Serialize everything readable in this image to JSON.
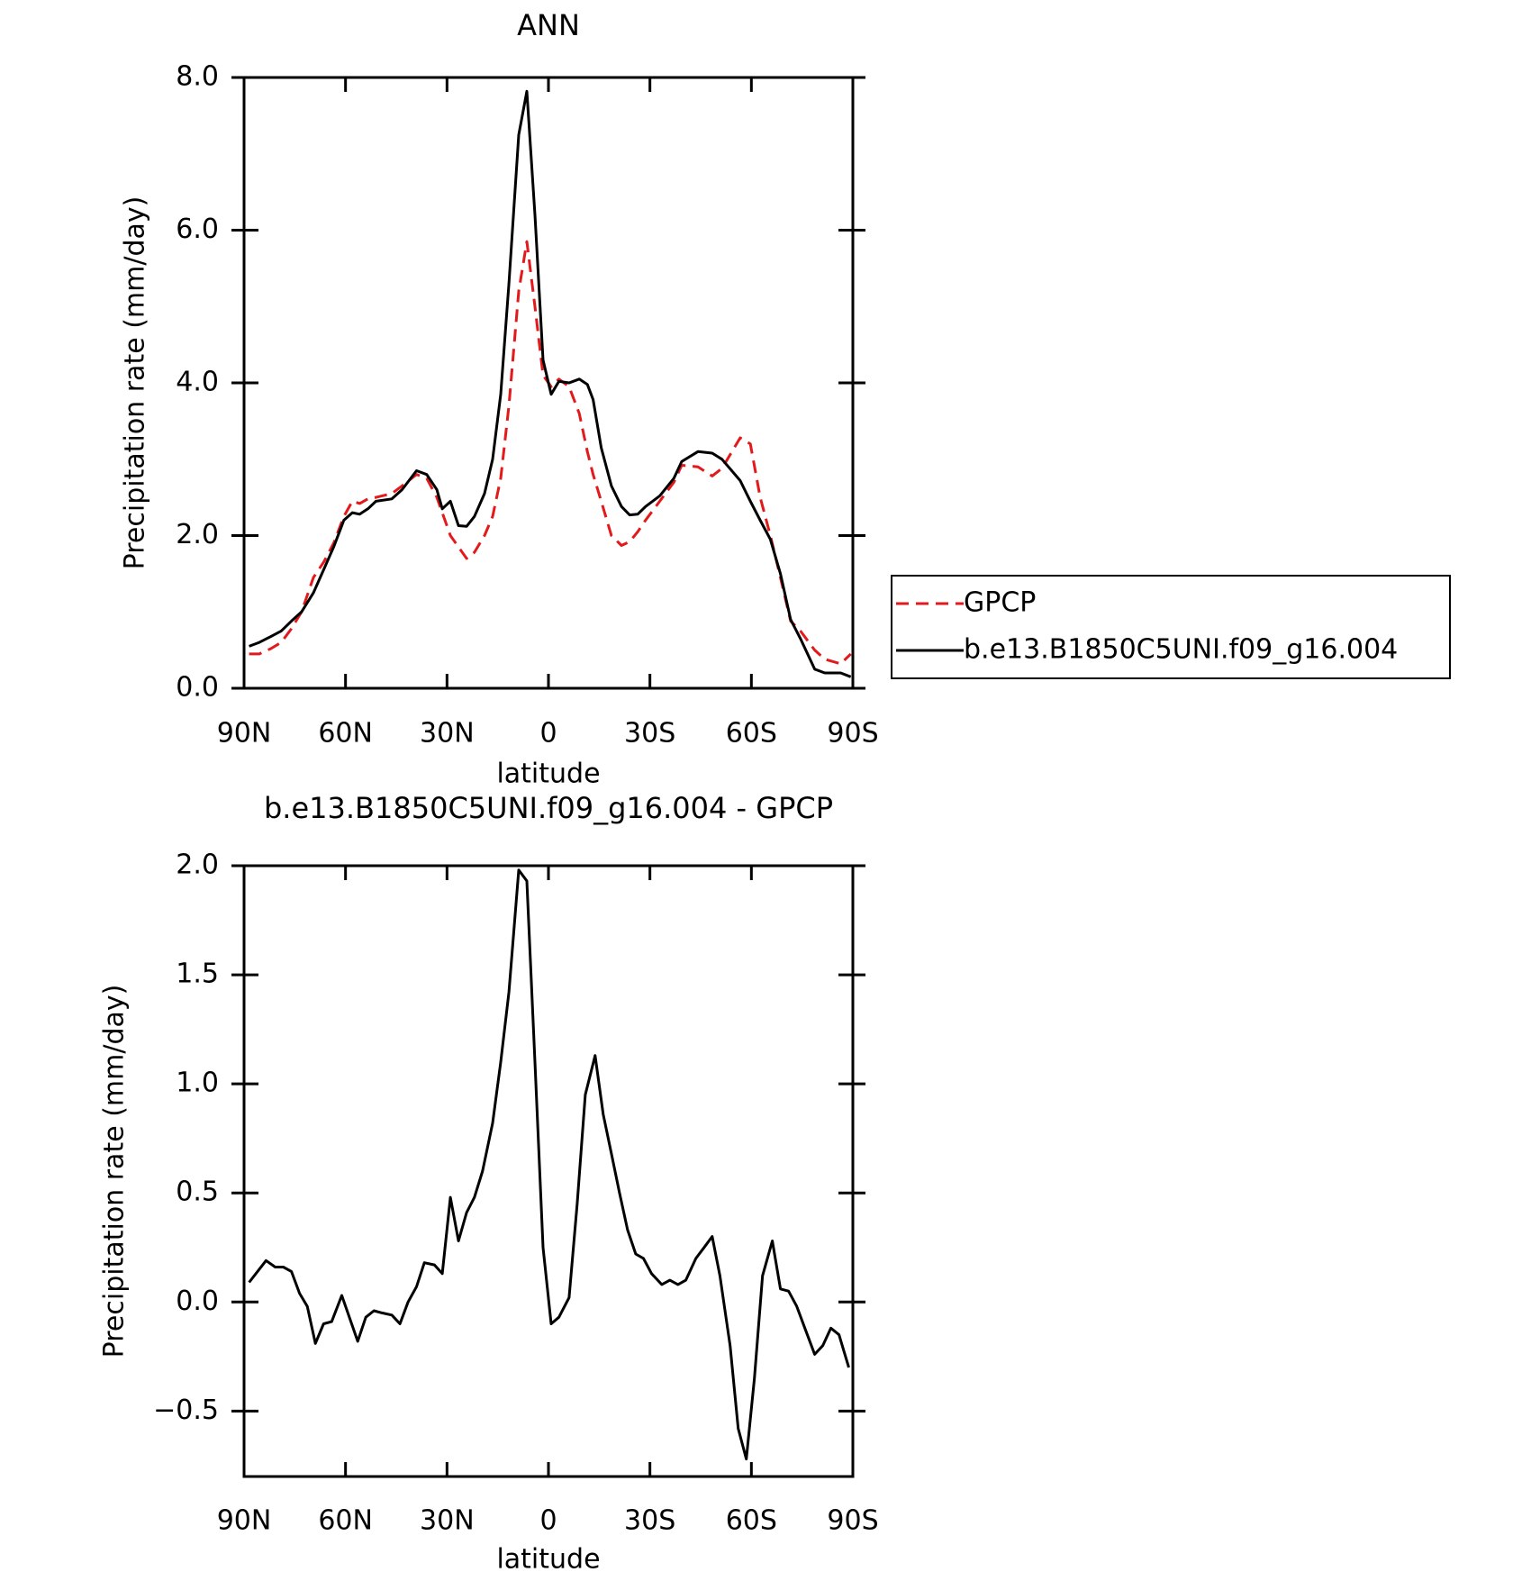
{
  "chart_data": [
    {
      "type": "line",
      "title": "ANN",
      "x_label": "latitude",
      "y_label": "Precipitation rate (mm/day)",
      "x": [
        88.5,
        85.5,
        82,
        79,
        76,
        73,
        69.5,
        66.5,
        63.5,
        60.5,
        58,
        55.8,
        53.4,
        51,
        46.3,
        43.3,
        39,
        36,
        33,
        31.4,
        29,
        26.6,
        24.2,
        21.9,
        18.9,
        16.5,
        14.1,
        11.7,
        8.8,
        6.4,
        4,
        1.6,
        -0.8,
        -3.1,
        -6.1,
        -9.1,
        -11.5,
        -13.2,
        -15.6,
        -18.6,
        -21.6,
        -24,
        -26.4,
        -28.7,
        -32.9,
        -37.1,
        -39.4,
        -44.2,
        -48.4,
        -51.3,
        -56.7,
        -59.7,
        -62.6,
        -65.6,
        -68.6,
        -71.6,
        -74.5,
        -78.7,
        -81.7,
        -86.4,
        -89.4
      ],
      "series": [
        {
          "name": "GPCP",
          "color": "#e31a1c",
          "style": "dashed",
          "values": [
            0.45,
            0.45,
            0.52,
            0.6,
            0.78,
            1.0,
            1.45,
            1.65,
            1.9,
            2.25,
            2.45,
            2.42,
            2.48,
            2.5,
            2.55,
            2.65,
            2.8,
            2.75,
            2.5,
            2.3,
            2.0,
            1.85,
            1.7,
            1.78,
            2.0,
            2.25,
            2.75,
            3.7,
            5.2,
            5.85,
            5.0,
            4.1,
            3.95,
            4.05,
            3.95,
            3.6,
            3.1,
            2.8,
            2.45,
            2.0,
            1.87,
            1.92,
            2.05,
            2.2,
            2.45,
            2.7,
            2.92,
            2.9,
            2.78,
            2.88,
            3.28,
            3.2,
            2.5,
            2.0,
            1.45,
            0.88,
            0.75,
            0.5,
            0.38,
            0.32,
            0.45
          ]
        },
        {
          "name": "b.e13.B1850C5UNI.f09_g16.004",
          "color": "#000000",
          "style": "solid",
          "values": [
            0.55,
            0.6,
            0.68,
            0.75,
            0.88,
            1.0,
            1.25,
            1.55,
            1.85,
            2.2,
            2.3,
            2.28,
            2.35,
            2.45,
            2.48,
            2.6,
            2.85,
            2.8,
            2.6,
            2.35,
            2.45,
            2.13,
            2.12,
            2.25,
            2.55,
            3.0,
            3.85,
            5.3,
            7.25,
            7.82,
            6.2,
            4.3,
            3.85,
            4.02,
            4.0,
            4.05,
            3.98,
            3.78,
            3.15,
            2.65,
            2.38,
            2.27,
            2.28,
            2.38,
            2.52,
            2.75,
            2.97,
            3.1,
            3.08,
            3.0,
            2.72,
            2.45,
            2.2,
            1.95,
            1.5,
            0.9,
            0.65,
            0.25,
            0.2,
            0.2,
            0.15
          ]
        }
      ],
      "xlim": [
        90,
        -90
      ],
      "xticks": [
        {
          "value": 90,
          "label": "90N"
        },
        {
          "value": 60,
          "label": "60N"
        },
        {
          "value": 30,
          "label": "30N"
        },
        0,
        {
          "value": -30,
          "label": "30S"
        },
        {
          "value": -60,
          "label": "60S"
        },
        {
          "value": -90,
          "label": "90S"
        }
      ],
      "ylim": [
        0,
        8
      ],
      "yticks": [
        {
          "value": 0,
          "label": "0.0"
        },
        {
          "value": 2,
          "label": "2.0"
        },
        {
          "value": 4,
          "label": "4.0"
        },
        {
          "value": 6,
          "label": "6.0"
        },
        {
          "value": 8,
          "label": "8.0"
        }
      ],
      "legend": "right",
      "grid": false
    },
    {
      "type": "line",
      "title": "b.e13.B1850C5UNI.f09_g16.004 - GPCP",
      "x_label": "latitude",
      "y_label": "Precipitation rate (mm/day)",
      "x": [
        88.5,
        83.5,
        80.8,
        78.4,
        76,
        73.6,
        71.3,
        68.9,
        66.5,
        64.1,
        61.1,
        56.4,
        54,
        51.6,
        49.2,
        46.3,
        43.9,
        41.5,
        39,
        36.7,
        33.7,
        31.4,
        29,
        26.6,
        24.2,
        21.9,
        19.5,
        16.5,
        14.1,
        11.7,
        8.8,
        6.4,
        4,
        1.6,
        -0.8,
        -3.1,
        -6.1,
        -8.5,
        -10.9,
        -13.8,
        -16.2,
        -18.6,
        -21,
        -23.4,
        -25.8,
        -28.1,
        -30.5,
        -33.5,
        -35.9,
        -38.3,
        -40.6,
        -43.6,
        -46,
        -48.4,
        -50.7,
        -53.7,
        -56.1,
        -58.5,
        -60.9,
        -63.3,
        -66.2,
        -68.6,
        -71,
        -73.4,
        -75.8,
        -78.7,
        -81.1,
        -83.5,
        -85.9,
        -88.8
      ],
      "values": [
        0.09,
        0.19,
        0.16,
        0.16,
        0.14,
        0.04,
        -0.02,
        -0.19,
        -0.1,
        -0.09,
        0.03,
        -0.18,
        -0.07,
        -0.04,
        -0.05,
        -0.06,
        -0.1,
        0.0,
        0.07,
        0.18,
        0.17,
        0.13,
        0.48,
        0.28,
        0.41,
        0.48,
        0.6,
        0.82,
        1.1,
        1.42,
        1.98,
        1.93,
        1.1,
        0.25,
        -0.1,
        -0.07,
        0.02,
        0.45,
        0.95,
        1.13,
        0.86,
        0.68,
        0.5,
        0.33,
        0.22,
        0.2,
        0.13,
        0.08,
        0.1,
        0.08,
        0.1,
        0.2,
        0.25,
        0.3,
        0.12,
        -0.2,
        -0.58,
        -0.72,
        -0.35,
        0.12,
        0.28,
        0.06,
        0.05,
        -0.02,
        -0.12,
        -0.24,
        -0.2,
        -0.12,
        -0.15,
        -0.3
      ],
      "color": "#000000",
      "xlim": [
        90,
        -90
      ],
      "xticks": [
        {
          "value": 90,
          "label": "90N"
        },
        {
          "value": 60,
          "label": "60N"
        },
        {
          "value": 30,
          "label": "30N"
        },
        0,
        {
          "value": -30,
          "label": "30S"
        },
        {
          "value": -60,
          "label": "60S"
        },
        {
          "value": -90,
          "label": "90S"
        }
      ],
      "ylim": [
        -0.8,
        2.0
      ],
      "yticks": [
        {
          "value": -0.5,
          "label": "−0.5"
        },
        {
          "value": 0,
          "label": "0.0"
        },
        {
          "value": 0.5,
          "label": "0.5"
        },
        {
          "value": 1,
          "label": "1.0"
        },
        {
          "value": 1.5,
          "label": "1.5"
        },
        {
          "value": 2,
          "label": "2.0"
        }
      ],
      "grid": false
    }
  ]
}
